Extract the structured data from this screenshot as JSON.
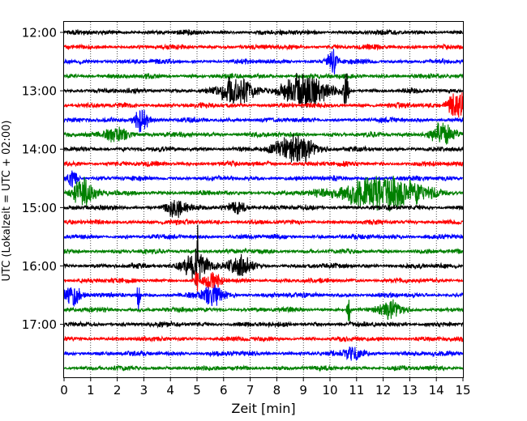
{
  "chart_data": {
    "type": "line",
    "subtype": "seismogram-helicorder",
    "title": "",
    "xlabel": "Zeit  [min]",
    "ylabel": "UTC (Lokalzeit = UTC + 02:00)",
    "xlim": [
      0,
      15
    ],
    "x_ticks": [
      0,
      1,
      2,
      3,
      4,
      5,
      6,
      7,
      8,
      9,
      10,
      11,
      12,
      13,
      14,
      15
    ],
    "x_tick_labels": [
      "0",
      "1",
      "2",
      "3",
      "4",
      "5",
      "6",
      "7",
      "8",
      "9",
      "10",
      "11",
      "12",
      "13",
      "14",
      "15"
    ],
    "y_tick_labels": [
      "12:00",
      "13:00",
      "14:00",
      "15:00",
      "16:00",
      "17:00"
    ],
    "grid": "vertical dotted lines at every minute",
    "line_minutes": 15,
    "trace_colors": [
      "#000000",
      "#ff0000",
      "#0000ff",
      "#008000"
    ],
    "trace_start_times": [
      "12:00",
      "12:15",
      "12:30",
      "12:45",
      "13:00",
      "13:15",
      "13:30",
      "13:45",
      "14:00",
      "14:15",
      "14:30",
      "14:45",
      "15:00",
      "15:15",
      "15:30",
      "15:45",
      "16:00",
      "16:15",
      "16:30",
      "16:45",
      "17:00",
      "17:15",
      "17:30",
      "17:45"
    ],
    "events": [
      {
        "trace": "12:30",
        "minute": 10.1,
        "amplitude": 0.7,
        "duration": 0.3
      },
      {
        "trace": "13:00",
        "minute": 6.5,
        "amplitude": 0.8,
        "duration": 0.9
      },
      {
        "trace": "13:00",
        "minute": 9.0,
        "amplitude": 1.0,
        "duration": 1.2
      },
      {
        "trace": "13:00",
        "minute": 10.6,
        "amplitude": 1.1,
        "duration": 0.15
      },
      {
        "trace": "13:15",
        "minute": 14.8,
        "amplitude": 0.9,
        "duration": 0.5
      },
      {
        "trace": "13:30",
        "minute": 2.9,
        "amplitude": 0.7,
        "duration": 0.4
      },
      {
        "trace": "13:45",
        "minute": 2.0,
        "amplitude": 0.5,
        "duration": 0.6
      },
      {
        "trace": "13:45",
        "minute": 14.2,
        "amplitude": 0.7,
        "duration": 0.6
      },
      {
        "trace": "14:00",
        "minute": 8.7,
        "amplitude": 0.9,
        "duration": 1.0
      },
      {
        "trace": "14:30",
        "minute": 0.3,
        "amplitude": 0.6,
        "duration": 0.3
      },
      {
        "trace": "14:45",
        "minute": 0.7,
        "amplitude": 0.8,
        "duration": 0.6
      },
      {
        "trace": "14:45",
        "minute": 12.0,
        "amplitude": 1.0,
        "duration": 2.2
      },
      {
        "trace": "15:00",
        "minute": 4.2,
        "amplitude": 0.6,
        "duration": 0.5
      },
      {
        "trace": "15:00",
        "minute": 6.5,
        "amplitude": 0.4,
        "duration": 0.5
      },
      {
        "trace": "16:00",
        "minute": 5.0,
        "amplitude": 1.8,
        "duration": 0.08
      },
      {
        "trace": "16:00",
        "minute": 4.9,
        "amplitude": 0.8,
        "duration": 0.7
      },
      {
        "trace": "16:00",
        "minute": 6.6,
        "amplitude": 0.6,
        "duration": 0.6
      },
      {
        "trace": "16:15",
        "minute": 5.0,
        "amplitude": 0.9,
        "duration": 0.08
      },
      {
        "trace": "16:15",
        "minute": 5.6,
        "amplitude": 0.5,
        "duration": 0.4
      },
      {
        "trace": "16:30",
        "minute": 0.3,
        "amplitude": 0.6,
        "duration": 0.4
      },
      {
        "trace": "16:30",
        "minute": 2.8,
        "amplitude": 1.0,
        "duration": 0.08
      },
      {
        "trace": "16:30",
        "minute": 5.6,
        "amplitude": 0.6,
        "duration": 0.6
      },
      {
        "trace": "16:45",
        "minute": 10.7,
        "amplitude": 1.1,
        "duration": 0.08
      },
      {
        "trace": "16:45",
        "minute": 12.3,
        "amplitude": 0.5,
        "duration": 0.6
      },
      {
        "trace": "17:30",
        "minute": 10.9,
        "amplitude": 0.4,
        "duration": 0.5
      }
    ]
  }
}
